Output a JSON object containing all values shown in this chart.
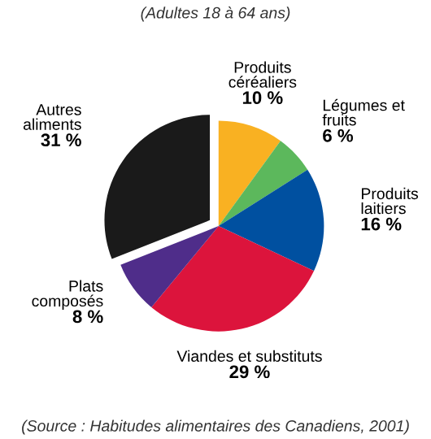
{
  "chart_data": {
    "type": "pie",
    "title": "(Adultes 18 à 64 ans)",
    "categories": [
      "Produits\ncéréaliers",
      "Légumes et\nfruits",
      "Produits\nlaitiers",
      "Viandes et substituts",
      "Plats\ncomposés",
      "Autres\naliments"
    ],
    "values": [
      10,
      6,
      16,
      29,
      8,
      31
    ],
    "value_labels": [
      "10 %",
      "6 %",
      "16 %",
      "29 %",
      "8 %",
      "31 %"
    ],
    "colors": [
      "#f9b122",
      "#5cb85c",
      "#0050a0",
      "#dc143c",
      "#4f2d8a",
      "#1a1a1a"
    ],
    "annotations": [
      "(Source : Habitudes alimentaires des Canadiens, 2001)"
    ]
  }
}
